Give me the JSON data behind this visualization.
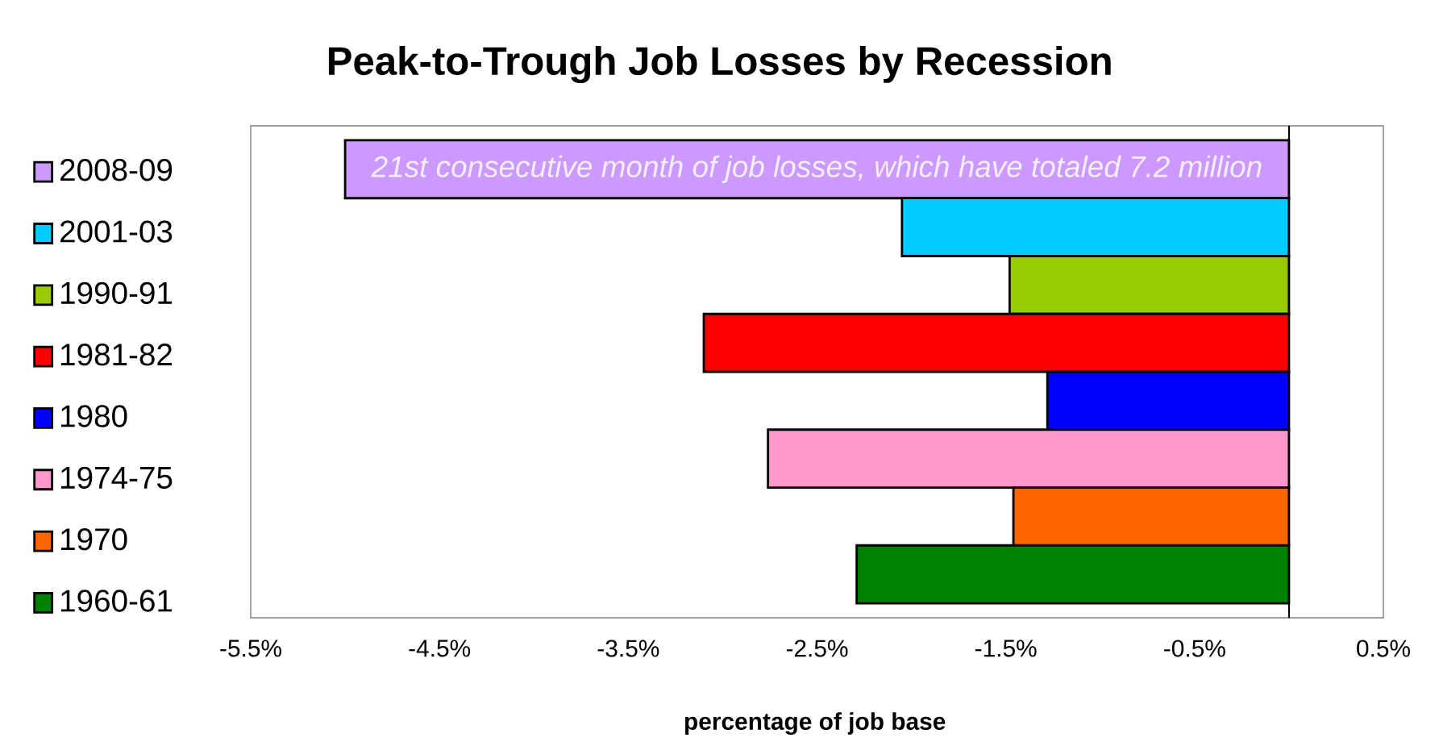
{
  "chart_data": {
    "type": "bar",
    "orientation": "horizontal",
    "title": "Peak-to-Trough Job Losses by Recession",
    "xlabel": "percentage of job base",
    "categories": [
      null,
      null,
      null,
      null,
      null,
      null,
      null,
      null
    ],
    "series": [
      {
        "name": "2008-09",
        "color": "#cc99ff",
        "values": [
          -5.0,
          null,
          null,
          null,
          null,
          null,
          null,
          null
        ]
      },
      {
        "name": "2001-03",
        "color": "#00ccff",
        "values": [
          null,
          -2.05,
          null,
          null,
          null,
          null,
          null,
          null
        ]
      },
      {
        "name": "1990-91",
        "color": "#99cc00",
        "values": [
          null,
          null,
          -1.48,
          null,
          null,
          null,
          null,
          null
        ]
      },
      {
        "name": "1981-82",
        "color": "#ff0000",
        "values": [
          null,
          null,
          null,
          -3.1,
          null,
          null,
          null,
          null
        ]
      },
      {
        "name": "1980",
        "color": "#0000ff",
        "values": [
          null,
          null,
          null,
          null,
          -1.28,
          null,
          null,
          null
        ]
      },
      {
        "name": "1974-75",
        "color": "#ff99cc",
        "values": [
          null,
          null,
          null,
          null,
          null,
          -2.76,
          null,
          null
        ]
      },
      {
        "name": "1970",
        "color": "#ff6600",
        "values": [
          null,
          null,
          null,
          null,
          null,
          null,
          -1.46,
          null
        ]
      },
      {
        "name": "1960-61",
        "color": "#008000",
        "values": [
          null,
          null,
          null,
          null,
          null,
          null,
          null,
          -2.29
        ]
      }
    ],
    "xlim": [
      -5.5,
      0.5
    ],
    "xticks": [
      {
        "value": -5.5,
        "label": "-5.5%"
      },
      {
        "value": -4.5,
        "label": "-4.5%"
      },
      {
        "value": -3.5,
        "label": "-3.5%"
      },
      {
        "value": -2.5,
        "label": "-2.5%"
      },
      {
        "value": -1.5,
        "label": "-1.5%"
      },
      {
        "value": -0.5,
        "label": "-0.5%"
      },
      {
        "value": 0.5,
        "label": "0.5%"
      }
    ],
    "ref_lines": [
      {
        "axis": "x",
        "value": 0,
        "color": "#000000"
      }
    ],
    "annotations": [
      "21st consecutive month of job losses, which have totaled 7.2 million"
    ],
    "legend": "left",
    "grid": false
  }
}
